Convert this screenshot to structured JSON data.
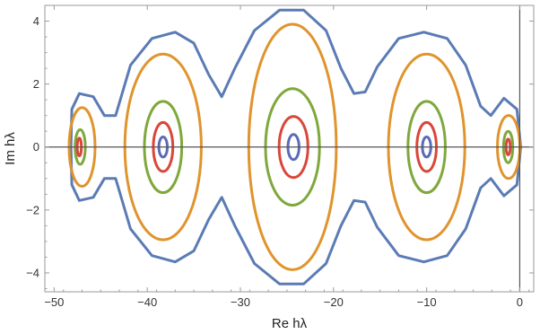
{
  "chart_data": {
    "type": "line",
    "title": "",
    "xlabel": "Re hλ",
    "ylabel": "Im hλ",
    "xlim": [
      -51,
      1.5
    ],
    "ylim": [
      -4.6,
      4.5
    ],
    "x_ticks": [
      -50,
      -40,
      -30,
      -20,
      -10,
      0
    ],
    "y_ticks": [
      -4,
      -2,
      0,
      2,
      4
    ],
    "x_tick_labels": [
      "−50",
      "−40",
      "−30",
      "−20",
      "−10",
      "0"
    ],
    "y_tick_labels": [
      "−4",
      "−2",
      "0",
      "2",
      "4"
    ],
    "reference_lines": {
      "horizontal_at_y": 0,
      "vertical_at_x": 0
    },
    "series": [
      {
        "color": "#5b7bb5",
        "kind": "outer-envelope",
        "points": [
          [
            -48.2,
            0
          ],
          [
            -48.1,
            1.2
          ],
          [
            -47.3,
            1.7
          ],
          [
            -45.8,
            1.6
          ],
          [
            -44.6,
            1.0
          ],
          [
            -43.4,
            1.0
          ],
          [
            -41.8,
            2.6
          ],
          [
            -39.5,
            3.45
          ],
          [
            -37.0,
            3.65
          ],
          [
            -35.0,
            3.3
          ],
          [
            -33.4,
            2.3
          ],
          [
            -32.0,
            1.6
          ],
          [
            -30.6,
            2.5
          ],
          [
            -28.5,
            3.7
          ],
          [
            -25.8,
            4.35
          ],
          [
            -23.2,
            4.35
          ],
          [
            -20.8,
            3.7
          ],
          [
            -19.2,
            2.5
          ],
          [
            -17.8,
            1.7
          ],
          [
            -16.6,
            1.75
          ],
          [
            -15.3,
            2.55
          ],
          [
            -13.0,
            3.45
          ],
          [
            -10.3,
            3.65
          ],
          [
            -7.8,
            3.45
          ],
          [
            -5.8,
            2.6
          ],
          [
            -4.2,
            1.3
          ],
          [
            -3.1,
            1.0
          ],
          [
            -1.7,
            1.55
          ],
          [
            -0.3,
            1.2
          ],
          [
            0.1,
            0
          ],
          [
            -0.3,
            -1.2
          ],
          [
            -1.7,
            -1.55
          ],
          [
            -3.1,
            -1.0
          ],
          [
            -4.2,
            -1.3
          ],
          [
            -5.8,
            -2.6
          ],
          [
            -7.8,
            -3.45
          ],
          [
            -10.3,
            -3.65
          ],
          [
            -13.0,
            -3.45
          ],
          [
            -15.3,
            -2.55
          ],
          [
            -16.6,
            -1.75
          ],
          [
            -17.8,
            -1.7
          ],
          [
            -19.2,
            -2.5
          ],
          [
            -20.8,
            -3.7
          ],
          [
            -23.2,
            -4.35
          ],
          [
            -25.8,
            -4.35
          ],
          [
            -28.5,
            -3.7
          ],
          [
            -30.6,
            -2.5
          ],
          [
            -32.0,
            -1.6
          ],
          [
            -33.4,
            -2.3
          ],
          [
            -35.0,
            -3.3
          ],
          [
            -37.0,
            -3.65
          ],
          [
            -39.5,
            -3.45
          ],
          [
            -41.8,
            -2.6
          ],
          [
            -43.4,
            -1.0
          ],
          [
            -44.6,
            -1.0
          ],
          [
            -45.8,
            -1.6
          ],
          [
            -47.3,
            -1.7
          ],
          [
            -48.1,
            -1.2
          ]
        ]
      },
      {
        "color": "#e0942d",
        "kind": "islands",
        "ellipses": [
          {
            "cx": -47.0,
            "cy": 0,
            "rx": 1.4,
            "ry": 1.25
          },
          {
            "cx": -38.3,
            "cy": 0,
            "rx": 4.1,
            "ry": 2.95
          },
          {
            "cx": -24.4,
            "cy": 0,
            "rx": 4.7,
            "ry": 3.9
          },
          {
            "cx": -10.0,
            "cy": 0,
            "rx": 4.1,
            "ry": 2.95
          },
          {
            "cx": -1.2,
            "cy": 0,
            "rx": 1.2,
            "ry": 1.0
          }
        ]
      },
      {
        "color": "#7fa83c",
        "kind": "islands",
        "ellipses": [
          {
            "cx": -47.2,
            "cy": 0,
            "rx": 0.55,
            "ry": 0.55
          },
          {
            "cx": -38.3,
            "cy": 0,
            "rx": 2.0,
            "ry": 1.45
          },
          {
            "cx": -24.4,
            "cy": 0,
            "rx": 2.9,
            "ry": 1.85
          },
          {
            "cx": -10.0,
            "cy": 0,
            "rx": 2.0,
            "ry": 1.45
          },
          {
            "cx": -1.25,
            "cy": 0,
            "rx": 0.5,
            "ry": 0.5
          }
        ]
      },
      {
        "color": "#d9473a",
        "kind": "islands",
        "ellipses": [
          {
            "cx": -47.3,
            "cy": 0,
            "rx": 0.22,
            "ry": 0.28
          },
          {
            "cx": -38.3,
            "cy": 0,
            "rx": 1.05,
            "ry": 0.78
          },
          {
            "cx": -24.3,
            "cy": 0,
            "rx": 1.55,
            "ry": 0.97
          },
          {
            "cx": -10.0,
            "cy": 0,
            "rx": 1.05,
            "ry": 0.78
          },
          {
            "cx": -1.25,
            "cy": 0,
            "rx": 0.22,
            "ry": 0.25
          }
        ]
      },
      {
        "color": "#5b6bb5",
        "kind": "islands",
        "ellipses": [
          {
            "cx": -38.3,
            "cy": 0,
            "rx": 0.45,
            "ry": 0.32
          },
          {
            "cx": -24.3,
            "cy": 0,
            "rx": 0.6,
            "ry": 0.4
          },
          {
            "cx": -10.0,
            "cy": 0,
            "rx": 0.45,
            "ry": 0.32
          }
        ]
      }
    ]
  }
}
